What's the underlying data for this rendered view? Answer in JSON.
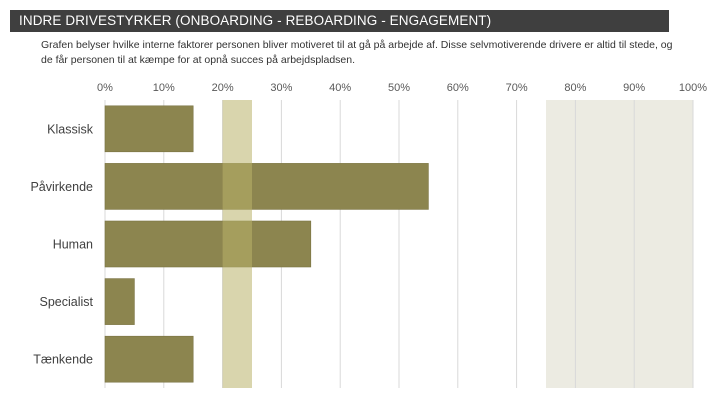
{
  "header": {
    "title": "INDRE DRIVESTYRKER (ONBOARDING - REBOARDING - ENGAGEMENT)"
  },
  "description": "Grafen belyser hvilke interne faktorer personen bliver motiveret til at gå på arbejde af. Disse selvmotiverende drivere er altid til stede, og de får personen til at kæmpe for at opnå succes på arbejdspladsen.",
  "colors": {
    "header_bg": "#3f3f3f",
    "bar": "#8c854f",
    "bar_edge": "#7a7343",
    "highlight_band": "#b9b26a",
    "high_zone": "#ecebe2",
    "grid": "#d9d9d9"
  },
  "chart_data": {
    "type": "bar",
    "orientation": "horizontal",
    "title": "",
    "xlabel": "",
    "ylabel": "",
    "xlim": [
      0,
      100
    ],
    "x_ticks": [
      "0%",
      "10%",
      "20%",
      "30%",
      "40%",
      "50%",
      "60%",
      "70%",
      "80%",
      "90%",
      "100%"
    ],
    "x_tick_values": [
      0,
      10,
      20,
      30,
      40,
      50,
      60,
      70,
      80,
      90,
      100
    ],
    "categories": [
      "Klassisk",
      "Påvirkende",
      "Human",
      "Specialist",
      "Tænkende"
    ],
    "values": [
      15,
      55,
      35,
      5,
      15
    ],
    "highlight_band": [
      20,
      25
    ],
    "high_zone": [
      75,
      100
    ]
  }
}
